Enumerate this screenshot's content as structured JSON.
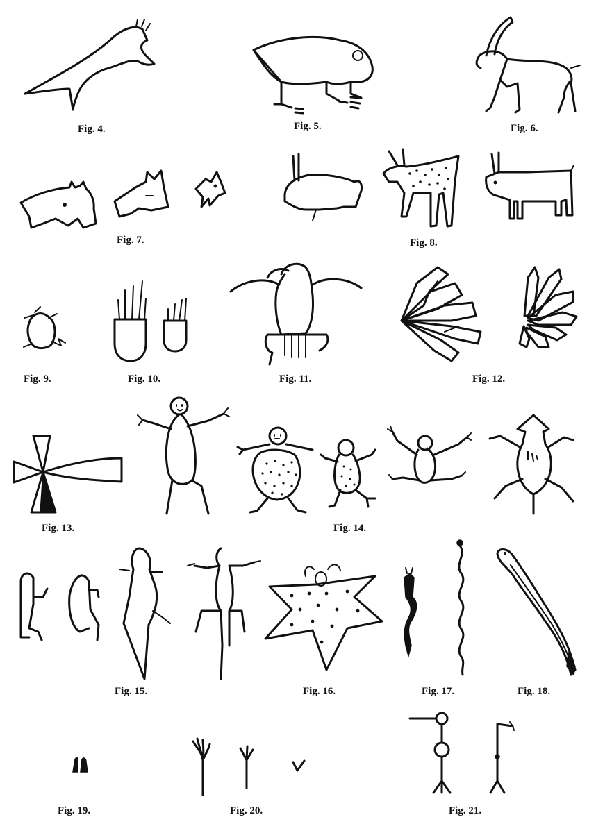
{
  "figures": [
    {
      "id": "fig4",
      "caption": "Fig. 4."
    },
    {
      "id": "fig5",
      "caption": "Fig. 5."
    },
    {
      "id": "fig6",
      "caption": "Fig. 6."
    },
    {
      "id": "fig7",
      "caption": "Fig. 7."
    },
    {
      "id": "fig8",
      "caption": "Fig. 8."
    },
    {
      "id": "fig9",
      "caption": "Fig. 9."
    },
    {
      "id": "fig10",
      "caption": "Fig. 10."
    },
    {
      "id": "fig11",
      "caption": "Fig. 11."
    },
    {
      "id": "fig12",
      "caption": "Fig. 12."
    },
    {
      "id": "fig13",
      "caption": "Fig. 13."
    },
    {
      "id": "fig14",
      "caption": "Fig. 14."
    },
    {
      "id": "fig15",
      "caption": "Fig. 15."
    },
    {
      "id": "fig16",
      "caption": "Fig. 16."
    },
    {
      "id": "fig17",
      "caption": "Fig. 17."
    },
    {
      "id": "fig18",
      "caption": "Fig. 18."
    },
    {
      "id": "fig19",
      "caption": "Fig. 19."
    },
    {
      "id": "fig20",
      "caption": "Fig. 20."
    },
    {
      "id": "fig21",
      "caption": "Fig. 21."
    }
  ]
}
